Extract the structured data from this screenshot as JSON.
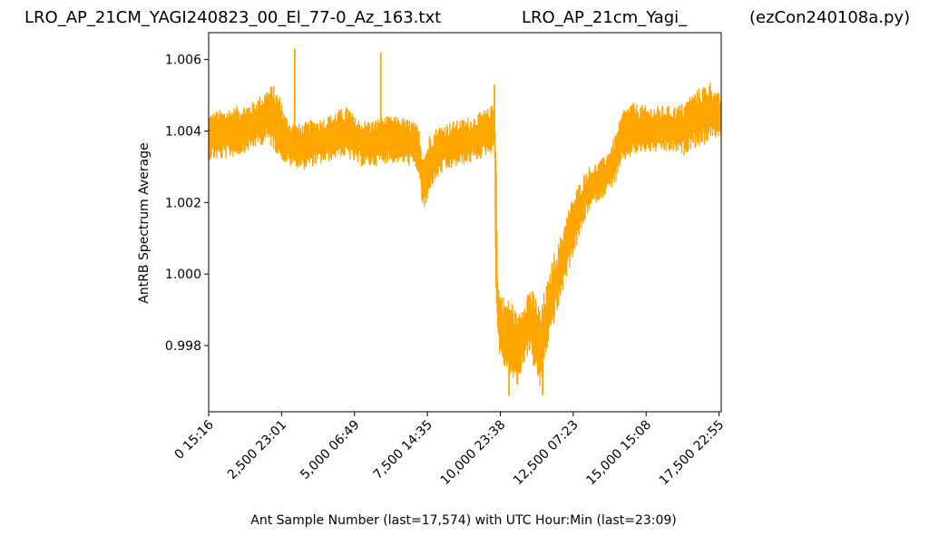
{
  "header": {
    "left_title": "LRO_AP_21CM_YAGI240823_00_El_77-0_Az_163.txt",
    "center_title": "LRO_AP_21cm_Yagi_",
    "right_title": "(ezCon240108a.py)"
  },
  "chart_data": {
    "type": "line",
    "xlabel": "Ant Sample Number (last=17,574) with UTC Hour:Min (last=23:09)",
    "ylabel": "AntRB Spectrum Average",
    "xlim": [
      0,
      17574
    ],
    "ylim": [
      0.99615,
      1.00675
    ],
    "grid": false,
    "line_color": "#ffa500",
    "x_ticks": [
      {
        "value": 0,
        "label": "0  15:16"
      },
      {
        "value": 2500,
        "label": "2,500  23:01"
      },
      {
        "value": 5000,
        "label": "5,000  06:49"
      },
      {
        "value": 7500,
        "label": "7,500  14:35"
      },
      {
        "value": 10000,
        "label": "10,000  23:38"
      },
      {
        "value": 12500,
        "label": "12,500  07:23"
      },
      {
        "value": 15000,
        "label": "15,000  15:08"
      },
      {
        "value": 17500,
        "label": "17,500  22:55"
      }
    ],
    "y_ticks": [
      {
        "value": 0.998,
        "label": "0.998"
      },
      {
        "value": 1.0,
        "label": "1.000"
      },
      {
        "value": 1.002,
        "label": "1.002"
      },
      {
        "value": 1.004,
        "label": "1.004"
      },
      {
        "value": 1.006,
        "label": "1.006"
      }
    ],
    "series": [
      {
        "envelope_x": [
          0,
          500,
          1000,
          1500,
          1800,
          2000,
          2200,
          2500,
          2600,
          2800,
          3000,
          3200,
          3500,
          4000,
          4500,
          4800,
          5000,
          5300,
          5600,
          6000,
          6500,
          7000,
          7200,
          7300,
          7400,
          7500,
          7600,
          8000,
          8500,
          9000,
          9500,
          9700,
          9800,
          9850,
          9900,
          10000,
          10200,
          10400,
          10600,
          10800,
          11000,
          11200,
          11400,
          11500,
          11700,
          11800,
          12000,
          12200,
          12500,
          12800,
          13000,
          13300,
          13600,
          14000,
          14200,
          14500,
          15000,
          15500,
          16000,
          16300,
          16500,
          17000,
          17200,
          17400,
          17574
        ],
        "envelope_low": [
          1.0032,
          1.0032,
          1.0033,
          1.0035,
          1.0036,
          1.0037,
          1.0035,
          1.0032,
          1.0031,
          1.003,
          1.003,
          1.0029,
          1.003,
          1.0031,
          1.0033,
          1.0032,
          1.0031,
          1.003,
          1.003,
          1.0031,
          1.0031,
          1.003,
          1.0028,
          1.002,
          1.0017,
          1.0019,
          1.0024,
          1.0028,
          1.003,
          1.0031,
          1.0033,
          1.0034,
          1.0035,
          0.999,
          0.9985,
          0.9975,
          0.9973,
          0.997,
          0.9968,
          0.9975,
          0.9978,
          0.9972,
          0.9967,
          0.9975,
          0.9982,
          0.9985,
          0.999,
          0.9997,
          1.0005,
          1.0012,
          1.0017,
          1.002,
          1.0022,
          1.0026,
          1.0031,
          1.0033,
          1.0034,
          1.0034,
          1.0034,
          1.0033,
          1.0035,
          1.0036,
          1.0038,
          1.0038,
          1.0038
        ],
        "envelope_high": [
          1.0045,
          1.0046,
          1.0047,
          1.0048,
          1.005,
          1.0052,
          1.0053,
          1.0049,
          1.0045,
          1.0043,
          1.0042,
          1.0042,
          1.0043,
          1.0044,
          1.0046,
          1.0047,
          1.0044,
          1.0043,
          1.0043,
          1.0044,
          1.0044,
          1.0043,
          1.0041,
          1.0036,
          1.0035,
          1.0037,
          1.004,
          1.0042,
          1.0043,
          1.0044,
          1.0046,
          1.0047,
          1.0048,
          1.0047,
          0.9999,
          0.9995,
          0.9993,
          0.9993,
          0.9988,
          0.9993,
          0.9997,
          0.9994,
          0.999,
          0.9995,
          1.0,
          1.0005,
          1.0009,
          1.0015,
          1.0022,
          1.0027,
          1.003,
          1.0031,
          1.0033,
          1.004,
          1.0046,
          1.0048,
          1.0047,
          1.0047,
          1.0047,
          1.0048,
          1.005,
          1.0053,
          1.0054,
          1.0051,
          1.005
        ],
        "spikes": [
          {
            "x": 2950,
            "y": 1.0063
          },
          {
            "x": 5900,
            "y": 1.0062
          },
          {
            "x": 9800,
            "y": 1.0053
          },
          {
            "x": 10300,
            "y": 0.9966
          },
          {
            "x": 11450,
            "y": 0.9966
          },
          {
            "x": 12300,
            "y": 1.0009
          }
        ]
      }
    ]
  }
}
